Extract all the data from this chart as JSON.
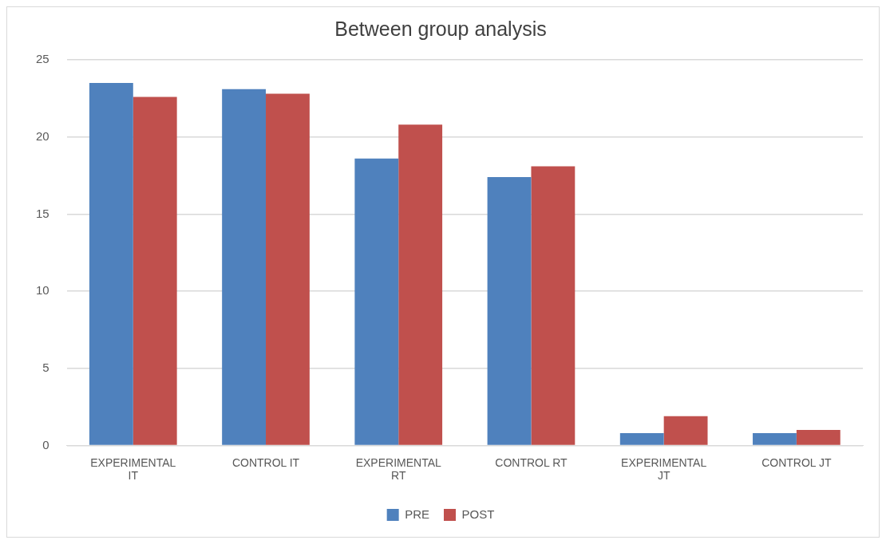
{
  "chart_data": {
    "type": "bar",
    "title": "Between group analysis",
    "categories": [
      "EXPERIMENTAL IT",
      "CONTROL IT",
      "EXPERIMENTAL RT",
      "CONTROL RT",
      "EXPERIMENTAL JT",
      "CONTROL JT"
    ],
    "series": [
      {
        "name": "PRE",
        "color": "#4f81bd",
        "values": [
          23.5,
          23.1,
          18.6,
          17.4,
          0.8,
          0.8
        ]
      },
      {
        "name": "POST",
        "color": "#c0504d",
        "values": [
          22.6,
          22.8,
          20.8,
          18.1,
          1.9,
          1.0
        ]
      }
    ],
    "ylim": [
      0,
      25
    ],
    "yticks": [
      0,
      5,
      10,
      15,
      20,
      25
    ],
    "grid": "y",
    "legend": "bottom"
  }
}
